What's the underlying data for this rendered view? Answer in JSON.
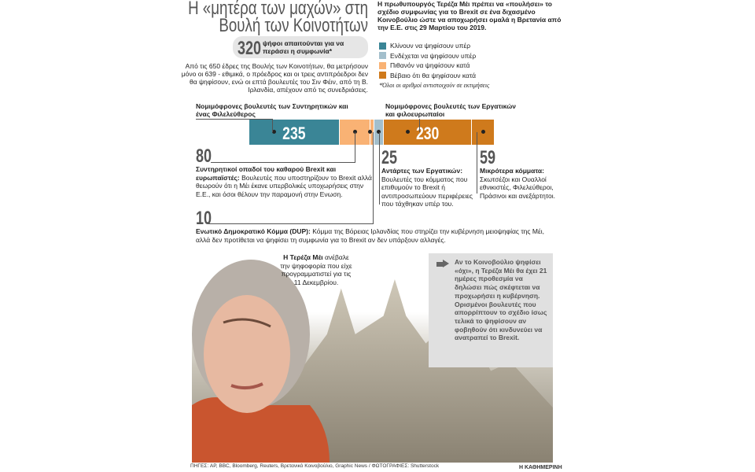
{
  "title": "Η «μητέρα των μαχών» στη Βουλή των Κοινοτήτων",
  "required": {
    "number": "320",
    "text": "ψήφοι απαιτούνται για να περάσει η συμφωνία*"
  },
  "intro": "Από τις 650 έδρες της Βουλής των Κοινοτήτων, θα μετρήσουν μόνο οι 639 - εθιμικά, ο πρόεδρος και οι τρεις αντιπρόεδροι δεν θα ψηφίσουν, ενώ οι επτά βουλευτές του Σιν Φέιν, από τη Β. Ιρλανδία, απέχουν από τις συνεδριάσεις.",
  "right_intro": "Η πρωθυπουργός Τερέζα Μέι πρέπει να «πουλήσει» το σχέδιο συμφωνίας για το Brexit σε ένα διχασμένο Κοινοβούλιο ώστε να αποχωρήσει ομαλά η Βρετανία από την Ε.Ε. στις 29 Μαρτίου του 2019.",
  "legend": [
    {
      "label": "Κλίνουν να ψηφίσουν υπέρ",
      "color": "#3a8596"
    },
    {
      "label": "Ενδέχεται να ψηφίσουν υπέρ",
      "color": "#a3bfcc"
    },
    {
      "label": "Πιθανόν να ψηφίσουν κατά",
      "color": "#f9b274"
    },
    {
      "label": "Βέβαιο ότι θα ψηφίσουν κατά",
      "color": "#cf7a1c"
    }
  ],
  "note": "*Όλοι οι αριθμοί αντιστοιχούν σε εκτιμήσεις",
  "chart_data": {
    "type": "bar",
    "orientation": "horizontal-stacked",
    "total": 639,
    "segments": [
      {
        "value": 235,
        "label": "235",
        "category": "Κλίνουν να ψηφίσουν υπέρ",
        "color": "#3a8596"
      },
      {
        "value": 80,
        "label": "",
        "category": "Πιθανόν να ψηφίσουν κατά",
        "color": "#f9b274"
      },
      {
        "value": 10,
        "label": "",
        "category": "Πιθανόν να ψηφίσουν κατά",
        "color": "#f9b274"
      },
      {
        "value": 25,
        "label": "",
        "category": "Ενδέχεται να ψηφίσουν υπέρ",
        "color": "#a3bfcc"
      },
      {
        "value": 230,
        "label": "230",
        "category": "Βέβαιο ότι θα ψηφίσουν κατά",
        "color": "#cf7a1c"
      },
      {
        "value": 59,
        "label": "",
        "category": "Βέβαιο ότι θα ψηφίσουν κατά",
        "color": "#cf7a1c"
      }
    ]
  },
  "annotations": {
    "conservatives": "Νομιμόφρονες βουλευτές των Συντηρητικών και ένας Φιλελεύθερος",
    "labour": "Νομιμόφρονες βουλευτές των Εργατικών και φιλοευρωπαίοι",
    "a80": {
      "num": "80",
      "title": "Συντηρητικοί οπαδοί του καθαρού Brexit και ευρωπαϊστές:",
      "text": "Βουλευτές που υποστηρίζουν το Brexit αλλά θεωρούν ότι η Μέι έκανε υπερβολικές υποχωρήσεις στην Ε.Ε., και όσοι θέλουν την παραμονή στην Ενωση."
    },
    "a25": {
      "num": "25",
      "title": "Αντάρτες των Εργατικών:",
      "text": "Βουλευτές του κόμματος που επιθυμούν το Brexit ή αντιπροσωπεύουν περιφέρειες που τάχθηκαν υπέρ του."
    },
    "a59": {
      "num": "59",
      "title": "Μικρότερα κόμματα:",
      "text": "Σκωτσέζοι και Ουαλλοί εθνικιστές, Φιλελεύθεροι, Πράσινοι και ανεξάρτητοι."
    },
    "a10": {
      "num": "10",
      "title": "Ενωτικό Δημοκρατικό Κόμμα (DUP):",
      "text": "Κόμμα της Βόρειας Ιρλανδίας που στηρίζει την κυβέρνηση μειοψηφίας της Μέι, αλλά δεν προτίθεται να ψηφίσει τη συμφωνία για το Brexit αν δεν υπάρξουν αλλαγές."
    }
  },
  "caption": {
    "bold": "Η Τερέζα Μέι",
    "text": " ανέβαλε την ψηφοφορία που είχε προγραμματιστεί για τις 11 Δεκεμβρίου."
  },
  "callout": "Αν το Κοινοβούλιο ψηφίσει «όχι», η Τερέζα Μέι θα έχει 21 ημέρες προθεσμία να δηλώσει πώς σκέφτεται να προχωρήσει η κυβέρνηση. Ορισμένοι βουλευτές που απορρίπτουν το σχέδιο ίσως τελικά το ψηφίσουν αν φοβηθούν ότι κινδυνεύει να ανατραπεί το Brexit.",
  "sources": "ΠΗΓΕΣ: AP, BBC, Bloomberg, Reuters, Βρετανικό Κοινοβούλιο, Graphic News / ΦΩΤΟΓΡΑΦΙΕΣ: Shutterstock",
  "brand": "Η ΚΑΘΗΜΕΡΙΝΗ"
}
